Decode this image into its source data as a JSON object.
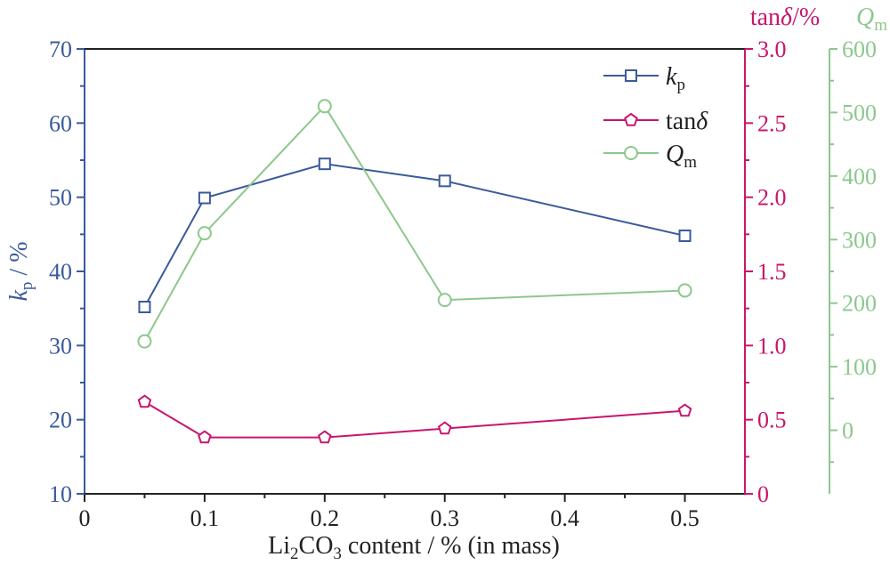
{
  "chart_data": {
    "type": "line",
    "x": [
      0.05,
      0.1,
      0.2,
      0.3,
      0.5
    ],
    "xlim": [
      0,
      0.55
    ],
    "xticks": [
      "0",
      "0.1",
      "0.2",
      "0.3",
      "0.4",
      "0.5"
    ],
    "xlabel": {
      "prefix": "Li",
      "sub1": "2",
      "mid": "CO",
      "sub2": "3",
      "suffix": " content / % (in mass)"
    },
    "axes": {
      "left": {
        "label_main": "k",
        "label_sub": "p",
        "label_suffix": " / %",
        "color": "#3a5a9b",
        "ylim": [
          10,
          70
        ],
        "ticks": [
          "10",
          "20",
          "30",
          "40",
          "50",
          "60",
          "70"
        ]
      },
      "right1": {
        "label_main": "tan",
        "label_delta": "δ",
        "label_suffix": "/%",
        "color": "#c8166b",
        "ylim": [
          0,
          3.0
        ],
        "ticks": [
          "0",
          "0.5",
          "1.0",
          "1.5",
          "2.0",
          "2.5",
          "3.0"
        ]
      },
      "right2": {
        "label_main": "Q",
        "label_sub": "m",
        "color": "#8cc88c",
        "ylim": [
          -100,
          600
        ],
        "ticks": [
          "0",
          "100",
          "200",
          "300",
          "400",
          "500",
          "600"
        ]
      }
    },
    "series": [
      {
        "axis": "left",
        "marker": "square",
        "color": "#3a5a9b",
        "values": [
          35.2,
          49.9,
          54.5,
          52.2,
          44.8
        ],
        "legend_main": "k",
        "legend_sub": "p"
      },
      {
        "axis": "right1",
        "marker": "pentagon",
        "color": "#c8166b",
        "values": [
          0.62,
          0.38,
          0.38,
          0.44,
          0.56
        ],
        "legend_main": "tan",
        "legend_delta": "δ"
      },
      {
        "axis": "right2",
        "marker": "circle",
        "color": "#8cc88c",
        "values": [
          140,
          310,
          510,
          205,
          220
        ],
        "legend_main": "Q",
        "legend_sub": "m"
      }
    ],
    "legend_position": "top-right",
    "grid": false
  }
}
